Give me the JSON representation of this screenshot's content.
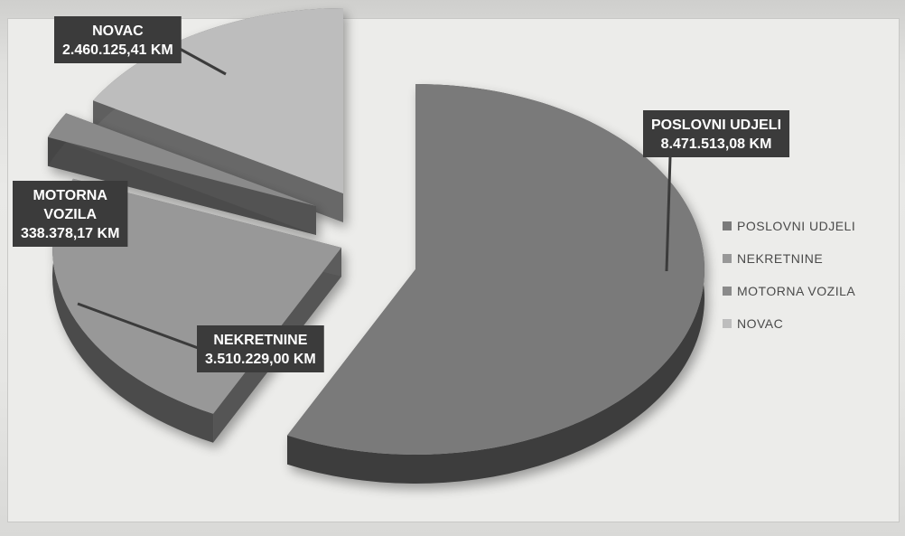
{
  "chart_data": {
    "type": "pie",
    "categories": [
      "POSLOVNI UDJELI",
      "NEKRETNINE",
      "MOTORNA VOZILA",
      "NOVAC"
    ],
    "values": [
      8471513.08,
      3510229.0,
      338378.17,
      2460125.41
    ],
    "data_labels": [
      [
        "POSLOVNI UDJELI",
        "8.471.513,08 KM"
      ],
      [
        "NEKRETNINE",
        "3.510.229,00 KM"
      ],
      [
        "MOTORNA",
        "VOZILA",
        "338.378,17 KM"
      ],
      [
        "NOVAC",
        "2.460.125,41 KM"
      ]
    ],
    "legend": {
      "placement": "right",
      "entries": [
        "POSLOVNI UDJELI",
        "NEKRETNINE",
        "MOTORNA VOZILA",
        "NOVAC"
      ]
    },
    "style": "3d-exploded",
    "colors": {
      "POSLOVNI UDJELI": "#7a7a7a",
      "NEKRETNINE": "#989898",
      "MOTORNA VOZILA": "#8a8a8a",
      "NOVAC": "#bdbdbd",
      "label_box": "#3b3b3b",
      "label_text": "#ffffff"
    }
  }
}
